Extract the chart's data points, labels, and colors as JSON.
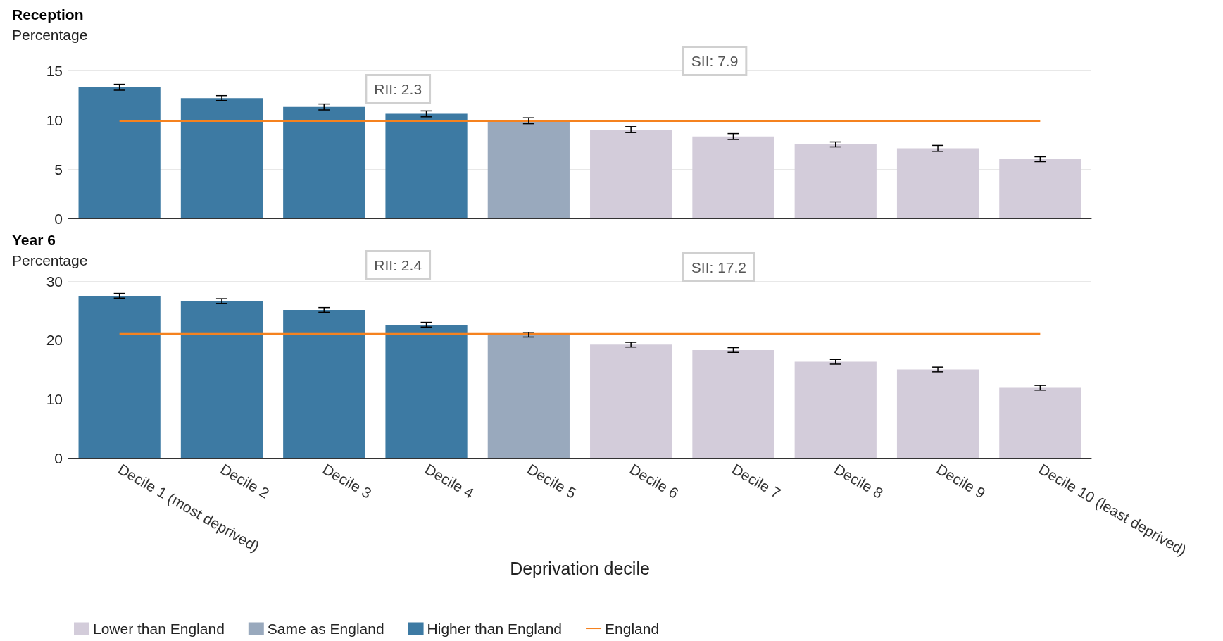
{
  "chart_data": [
    {
      "type": "bar",
      "title": "Reception",
      "ylabel": "Percentage",
      "categories": [
        null,
        null,
        null,
        null,
        null,
        null,
        null,
        null,
        null,
        null
      ],
      "stacked": true,
      "series": [
        {
          "color": "#d3ccda",
          "values": [
            null,
            null,
            null,
            null,
            null,
            9.0,
            8.3,
            7.5,
            7.1,
            6.0
          ],
          "errors": [
            null,
            null,
            null,
            null,
            null,
            0.3,
            0.3,
            0.25,
            0.3,
            0.25
          ]
        },
        {
          "color": "#99a9bd",
          "values": [
            null,
            null,
            null,
            null,
            9.9,
            null,
            null,
            null,
            null,
            null
          ],
          "errors": [
            null,
            null,
            null,
            null,
            0.3,
            null,
            null,
            null,
            null,
            null
          ]
        },
        {
          "color": "#3d7aa3",
          "values": [
            13.3,
            12.2,
            11.3,
            10.6,
            null,
            null,
            null,
            null,
            null,
            null
          ],
          "errors": [
            0.3,
            0.25,
            0.3,
            0.3,
            null,
            null,
            null,
            null,
            null,
            null
          ]
        },
        {
          "type": "line",
          "color": "#f5821f",
          "values": [
            9.9,
            9.9,
            9.9,
            9.9,
            9.9,
            9.9,
            9.9,
            9.9,
            9.9,
            9.9
          ]
        }
      ],
      "ylim": [
        0,
        15
      ],
      "yticks": [
        0,
        5,
        10,
        15
      ],
      "grid": "y",
      "legend": false,
      "tick_labels": "y",
      "marker": "none",
      "annotations": [
        "RII: 2.3",
        "SII: 7.9"
      ]
    },
    {
      "type": "bar",
      "title": "Year 6",
      "ylabel": "Percentage",
      "xlabel": "Deprivation decile",
      "categories": [
        "Decile 1 (most deprived)",
        "Decile 2",
        "Decile 3",
        "Decile 4",
        "Decile 5",
        "Decile 6",
        "Decile 7",
        "Decile 8",
        "Decile 9",
        "Decile 10 (least deprived)"
      ],
      "stacked": true,
      "series": [
        {
          "name": "Lower than England",
          "color": "#d3ccda",
          "values": [
            null,
            null,
            null,
            null,
            null,
            19.2,
            18.3,
            16.3,
            15.0,
            11.9
          ],
          "errors": [
            null,
            null,
            null,
            null,
            null,
            0.4,
            0.4,
            0.4,
            0.4,
            0.4
          ]
        },
        {
          "name": "Same as England",
          "color": "#99a9bd",
          "values": [
            null,
            null,
            null,
            null,
            20.9,
            null,
            null,
            null,
            null,
            null
          ],
          "errors": [
            null,
            null,
            null,
            null,
            0.4,
            null,
            null,
            null,
            null,
            null
          ]
        },
        {
          "name": "Higher than England",
          "color": "#3d7aa3",
          "values": [
            27.5,
            26.6,
            25.1,
            22.6,
            null,
            null,
            null,
            null,
            null,
            null
          ],
          "errors": [
            0.4,
            0.4,
            0.4,
            0.4,
            null,
            null,
            null,
            null,
            null,
            null
          ]
        },
        {
          "name": "England",
          "type": "line",
          "color": "#f5821f",
          "values": [
            21.0,
            21.0,
            21.0,
            21.0,
            21.0,
            21.0,
            21.0,
            21.0,
            21.0,
            21.0
          ]
        }
      ],
      "ylim": [
        0,
        30
      ],
      "yticks": [
        0,
        10,
        20,
        30
      ],
      "grid": "y",
      "legend": "bottom left",
      "marker": "none",
      "annotations": [
        "RII: 2.4",
        "SII: 17.2"
      ]
    }
  ]
}
